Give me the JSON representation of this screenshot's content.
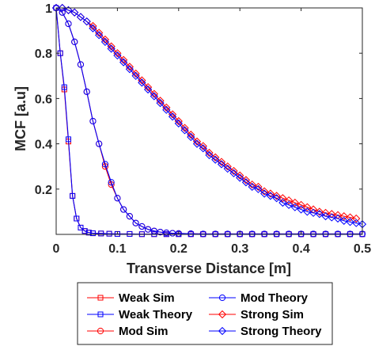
{
  "chart_data": {
    "type": "line",
    "title": "",
    "xlabel": "Transverse Distance [m]",
    "ylabel": "MCF [a.u]",
    "xlim": [
      0,
      0.5
    ],
    "ylim": [
      0,
      1
    ],
    "grid": false,
    "legend_position": "below",
    "xticks": [
      0,
      0.1,
      0.2,
      0.3,
      0.4,
      0.5
    ],
    "xtick_labels": [
      "0",
      "0.1",
      "0.2",
      "0.3",
      "0.4",
      "0.5"
    ],
    "yticks": [
      0.2,
      0.4,
      0.6,
      0.8,
      1
    ],
    "ytick_labels": [
      "0.2",
      "0.4",
      "0.6",
      "0.8",
      "1"
    ],
    "colors": {
      "sim": "#ff0000",
      "theory": "#0000ff"
    },
    "series": [
      {
        "name": "Weak Sim",
        "color": "#ff0000",
        "marker": "square",
        "x": [
          0,
          0.0067,
          0.0133,
          0.02,
          0.0267,
          0.0333,
          0.04,
          0.0467,
          0.0533,
          0.06,
          0.0733,
          0.0867,
          0.1,
          0.12,
          0.14,
          0.16,
          0.18,
          0.2,
          0.22,
          0.24,
          0.26,
          0.28,
          0.3,
          0.32,
          0.34,
          0.36,
          0.38,
          0.4,
          0.42,
          0.44,
          0.46,
          0.48,
          0.5
        ],
        "y": [
          1,
          0.8,
          0.64,
          0.41,
          0.17,
          0.07,
          0.03,
          0.015,
          0.008,
          0.005,
          0.004,
          0.003,
          0.002,
          0.002,
          0.001,
          0.001,
          0.001,
          0.001,
          0.001,
          0.001,
          0.001,
          0.001,
          0.001,
          0.001,
          0.001,
          0.001,
          0.001,
          0.001,
          0.001,
          0.001,
          0.001,
          0.001,
          0.001
        ]
      },
      {
        "name": "Weak Theory",
        "color": "#0000ff",
        "marker": "square",
        "x": [
          0,
          0.0067,
          0.0133,
          0.02,
          0.0267,
          0.0333,
          0.04,
          0.0467,
          0.0533,
          0.06,
          0.0733,
          0.0867,
          0.1,
          0.12,
          0.14,
          0.16,
          0.18,
          0.2,
          0.22,
          0.24,
          0.26,
          0.28,
          0.3,
          0.32,
          0.34,
          0.36,
          0.38,
          0.4,
          0.42,
          0.44,
          0.46,
          0.48,
          0.5
        ],
        "y": [
          1,
          0.8,
          0.65,
          0.42,
          0.17,
          0.07,
          0.03,
          0.015,
          0.008,
          0.005,
          0.004,
          0.003,
          0.002,
          0.002,
          0.001,
          0.001,
          0.001,
          0.001,
          0.001,
          0.001,
          0.001,
          0.001,
          0.001,
          0.001,
          0.001,
          0.001,
          0.001,
          0.001,
          0.001,
          0.001,
          0.001,
          0.001,
          0.001
        ]
      },
      {
        "name": "Mod Sim",
        "color": "#ff0000",
        "marker": "circle",
        "x": [
          0,
          0.01,
          0.02,
          0.03,
          0.04,
          0.05,
          0.06,
          0.07,
          0.08,
          0.09,
          0.1,
          0.11,
          0.12,
          0.13,
          0.14,
          0.15,
          0.16,
          0.17,
          0.18,
          0.19,
          0.2,
          0.22,
          0.24,
          0.26,
          0.28,
          0.3,
          0.32,
          0.34,
          0.36,
          0.38,
          0.4,
          0.42,
          0.44,
          0.46,
          0.48,
          0.5
        ],
        "y": [
          1,
          0.98,
          0.93,
          0.85,
          0.75,
          0.63,
          0.5,
          0.4,
          0.3,
          0.22,
          0.16,
          0.11,
          0.08,
          0.05,
          0.035,
          0.022,
          0.015,
          0.01,
          0.007,
          0.005,
          0.004,
          0.003,
          0.002,
          0.002,
          0.002,
          0.002,
          0.002,
          0.002,
          0.002,
          0.002,
          0.002,
          0.002,
          0.002,
          0.002,
          0.002,
          0.002
        ]
      },
      {
        "name": "Mod Theory",
        "color": "#0000ff",
        "marker": "circle",
        "x": [
          0,
          0.01,
          0.02,
          0.03,
          0.04,
          0.05,
          0.06,
          0.07,
          0.08,
          0.09,
          0.1,
          0.11,
          0.12,
          0.13,
          0.14,
          0.15,
          0.16,
          0.17,
          0.18,
          0.19,
          0.2,
          0.22,
          0.24,
          0.26,
          0.28,
          0.3,
          0.32,
          0.34,
          0.36,
          0.38,
          0.4,
          0.42,
          0.44,
          0.46,
          0.48,
          0.5
        ],
        "y": [
          1,
          0.98,
          0.93,
          0.85,
          0.75,
          0.63,
          0.5,
          0.4,
          0.31,
          0.23,
          0.16,
          0.11,
          0.08,
          0.05,
          0.035,
          0.022,
          0.015,
          0.01,
          0.007,
          0.005,
          0.004,
          0.003,
          0.002,
          0.002,
          0.002,
          0.002,
          0.002,
          0.002,
          0.002,
          0.002,
          0.002,
          0.002,
          0.002,
          0.002,
          0.002,
          0.002
        ]
      },
      {
        "name": "Strong Sim",
        "color": "#ff0000",
        "marker": "diamond",
        "x": [
          0,
          0.01,
          0.02,
          0.03,
          0.04,
          0.05,
          0.06,
          0.07,
          0.08,
          0.09,
          0.1,
          0.11,
          0.12,
          0.13,
          0.14,
          0.15,
          0.16,
          0.17,
          0.18,
          0.19,
          0.2,
          0.21,
          0.22,
          0.23,
          0.24,
          0.25,
          0.26,
          0.27,
          0.28,
          0.29,
          0.3,
          0.31,
          0.32,
          0.33,
          0.34,
          0.35,
          0.36,
          0.37,
          0.38,
          0.39,
          0.4,
          0.41,
          0.42,
          0.43,
          0.44,
          0.45,
          0.46,
          0.47,
          0.48,
          0.49
        ],
        "y": [
          1,
          1.0,
          0.99,
          0.98,
          0.96,
          0.94,
          0.92,
          0.89,
          0.86,
          0.83,
          0.8,
          0.77,
          0.74,
          0.71,
          0.68,
          0.65,
          0.62,
          0.59,
          0.56,
          0.53,
          0.5,
          0.47,
          0.44,
          0.41,
          0.39,
          0.36,
          0.34,
          0.32,
          0.3,
          0.28,
          0.26,
          0.24,
          0.22,
          0.21,
          0.19,
          0.18,
          0.17,
          0.16,
          0.15,
          0.14,
          0.13,
          0.12,
          0.11,
          0.1,
          0.095,
          0.09,
          0.085,
          0.08,
          0.075,
          0.07
        ]
      },
      {
        "name": "Strong Theory",
        "color": "#0000ff",
        "marker": "diamond",
        "x": [
          0,
          0.01,
          0.02,
          0.03,
          0.04,
          0.05,
          0.06,
          0.07,
          0.08,
          0.09,
          0.1,
          0.11,
          0.12,
          0.13,
          0.14,
          0.15,
          0.16,
          0.17,
          0.18,
          0.19,
          0.2,
          0.21,
          0.22,
          0.23,
          0.24,
          0.25,
          0.26,
          0.27,
          0.28,
          0.29,
          0.3,
          0.31,
          0.32,
          0.33,
          0.34,
          0.35,
          0.36,
          0.37,
          0.38,
          0.39,
          0.4,
          0.41,
          0.42,
          0.43,
          0.44,
          0.45,
          0.46,
          0.47,
          0.48,
          0.49,
          0.5
        ],
        "y": [
          1,
          1.0,
          0.99,
          0.98,
          0.96,
          0.94,
          0.91,
          0.88,
          0.85,
          0.82,
          0.79,
          0.76,
          0.73,
          0.7,
          0.67,
          0.64,
          0.61,
          0.58,
          0.55,
          0.52,
          0.49,
          0.46,
          0.43,
          0.4,
          0.38,
          0.35,
          0.33,
          0.31,
          0.29,
          0.27,
          0.25,
          0.23,
          0.21,
          0.2,
          0.18,
          0.17,
          0.16,
          0.14,
          0.13,
          0.12,
          0.11,
          0.1,
          0.095,
          0.09,
          0.08,
          0.075,
          0.07,
          0.06,
          0.055,
          0.05,
          0.045
        ]
      }
    ]
  },
  "legend": {
    "items": [
      {
        "label": "Weak Sim",
        "color": "#ff0000",
        "marker": "square"
      },
      {
        "label": "Mod Theory",
        "color": "#0000ff",
        "marker": "circle"
      },
      {
        "label": "Weak Theory",
        "color": "#0000ff",
        "marker": "square"
      },
      {
        "label": "Strong Sim",
        "color": "#ff0000",
        "marker": "diamond"
      },
      {
        "label": "Mod Sim",
        "color": "#ff0000",
        "marker": "circle"
      },
      {
        "label": "Strong Theory",
        "color": "#0000ff",
        "marker": "diamond"
      }
    ]
  }
}
